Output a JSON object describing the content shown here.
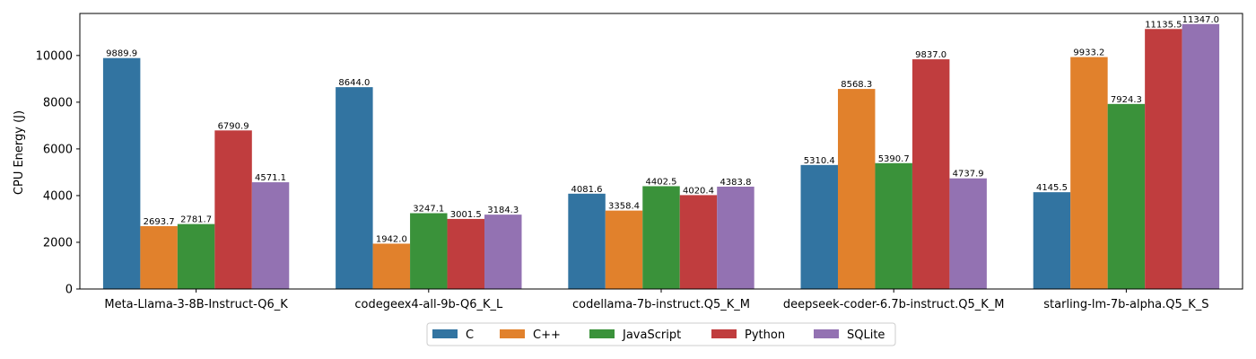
{
  "chart_data": {
    "type": "bar",
    "title": "",
    "xlabel": "",
    "ylabel": "CPU Energy (J)",
    "ylim": [
      0,
      11800
    ],
    "yticks": [
      0,
      2000,
      4000,
      6000,
      8000,
      10000
    ],
    "grid": false,
    "legend_position": "bottom-center",
    "categories": [
      "Meta-Llama-3-8B-Instruct-Q6_K",
      "codegeex4-all-9b-Q6_K_L",
      "codellama-7b-instruct.Q5_K_M",
      "deepseek-coder-6.7b-instruct.Q5_K_M",
      "starling-lm-7b-alpha.Q5_K_S"
    ],
    "series": [
      {
        "name": "C",
        "color": "#3274a1",
        "values": [
          9889.9,
          8644.0,
          4081.6,
          5310.4,
          4145.5
        ]
      },
      {
        "name": "C++",
        "color": "#e1812c",
        "values": [
          2693.7,
          1942.0,
          3358.4,
          8568.3,
          9933.2
        ]
      },
      {
        "name": "JavaScript",
        "color": "#3a923a",
        "values": [
          2781.7,
          3247.1,
          4402.5,
          5390.7,
          7924.3
        ]
      },
      {
        "name": "Python",
        "color": "#c03d3e",
        "values": [
          6790.9,
          3001.5,
          4020.4,
          9837.0,
          11135.5
        ]
      },
      {
        "name": "SQLite",
        "color": "#9372b2",
        "values": [
          4571.1,
          3184.3,
          4383.8,
          4737.9,
          11347.0
        ]
      }
    ]
  }
}
